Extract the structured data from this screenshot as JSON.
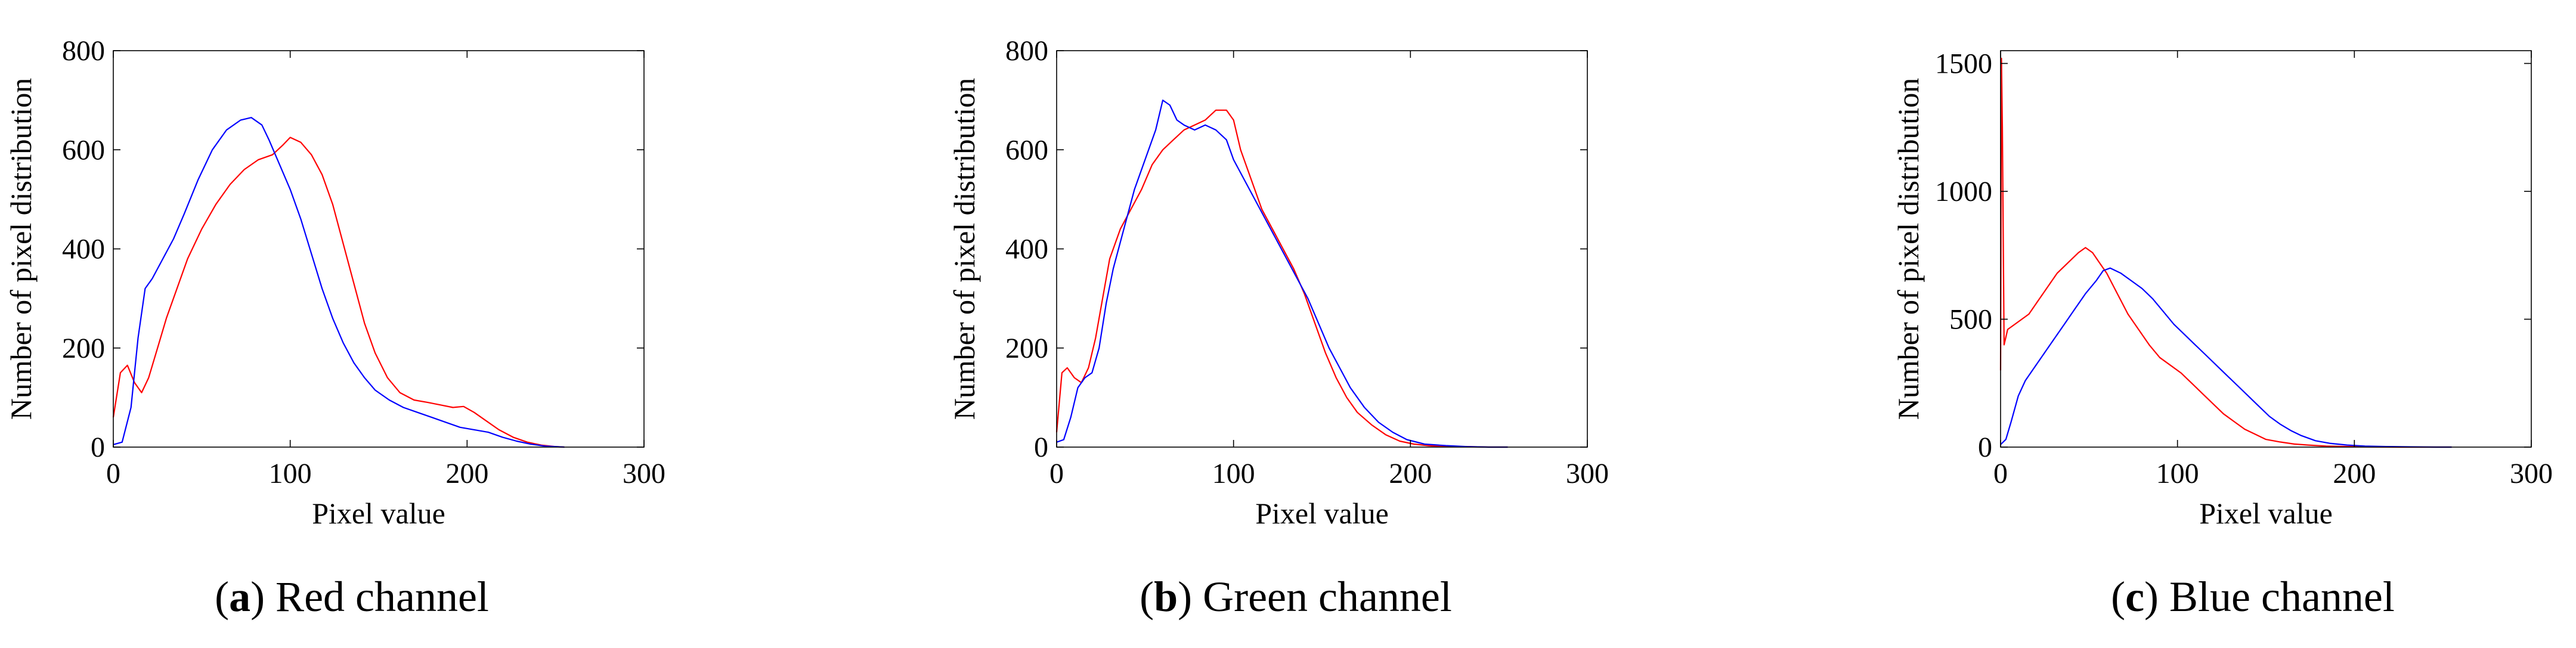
{
  "chart_data": [
    {
      "type": "line",
      "panel_letter": "a",
      "caption": "Red channel",
      "xlabel": "Pixel value",
      "ylabel": "Number of pixel distribution",
      "xlim": [
        0,
        300
      ],
      "ylim": [
        0,
        800
      ],
      "xticks": [
        0,
        100,
        200,
        300
      ],
      "yticks": [
        0,
        200,
        400,
        600,
        800
      ],
      "grid": false,
      "series": [
        {
          "name": "red",
          "color": "#ff0000",
          "x": [
            0,
            4,
            8,
            12,
            16,
            20,
            25,
            30,
            36,
            42,
            50,
            58,
            66,
            74,
            82,
            90,
            96,
            100,
            106,
            112,
            118,
            124,
            130,
            136,
            142,
            148,
            155,
            162,
            170,
            178,
            185,
            192,
            198,
            204,
            210,
            218,
            226,
            234,
            242,
            250,
            255
          ],
          "y": [
            60,
            150,
            165,
            130,
            110,
            140,
            200,
            260,
            320,
            380,
            440,
            490,
            530,
            560,
            580,
            590,
            610,
            625,
            615,
            590,
            550,
            490,
            410,
            330,
            250,
            190,
            140,
            110,
            95,
            90,
            85,
            80,
            82,
            70,
            55,
            35,
            20,
            10,
            4,
            1,
            0
          ]
        },
        {
          "name": "blue",
          "color": "#0000ff",
          "x": [
            0,
            5,
            10,
            14,
            18,
            22,
            28,
            34,
            40,
            48,
            56,
            64,
            72,
            78,
            84,
            88,
            94,
            100,
            106,
            112,
            118,
            124,
            130,
            136,
            142,
            148,
            156,
            164,
            172,
            180,
            188,
            196,
            204,
            212,
            220,
            228,
            236,
            244,
            250,
            255
          ],
          "y": [
            5,
            10,
            80,
            220,
            320,
            340,
            380,
            420,
            470,
            540,
            600,
            640,
            660,
            665,
            650,
            620,
            570,
            520,
            460,
            390,
            320,
            260,
            210,
            170,
            140,
            115,
            95,
            80,
            70,
            60,
            50,
            40,
            35,
            30,
            20,
            12,
            6,
            2,
            1,
            0
          ]
        }
      ]
    },
    {
      "type": "line",
      "panel_letter": "b",
      "caption": "Green channel",
      "xlabel": "Pixel value",
      "ylabel": "Number of pixel distribution",
      "xlim": [
        0,
        300
      ],
      "ylim": [
        0,
        800
      ],
      "xticks": [
        0,
        100,
        200,
        300
      ],
      "yticks": [
        0,
        200,
        400,
        600,
        800
      ],
      "grid": false,
      "series": [
        {
          "name": "red",
          "color": "#ff0000",
          "x": [
            0,
            3,
            6,
            10,
            14,
            18,
            22,
            26,
            30,
            36,
            42,
            48,
            54,
            60,
            66,
            72,
            78,
            84,
            90,
            96,
            100,
            104,
            110,
            116,
            122,
            128,
            134,
            140,
            146,
            152,
            158,
            164,
            170,
            178,
            186,
            194,
            202,
            210,
            220,
            232,
            244,
            255
          ],
          "y": [
            30,
            150,
            160,
            140,
            130,
            160,
            220,
            300,
            380,
            440,
            480,
            520,
            570,
            600,
            620,
            640,
            650,
            660,
            680,
            680,
            660,
            600,
            540,
            480,
            440,
            400,
            360,
            310,
            250,
            190,
            140,
            100,
            70,
            45,
            25,
            12,
            6,
            3,
            1,
            1,
            0,
            0
          ]
        },
        {
          "name": "blue",
          "color": "#0000ff",
          "x": [
            0,
            4,
            8,
            12,
            16,
            20,
            24,
            28,
            32,
            38,
            44,
            50,
            56,
            60,
            64,
            68,
            72,
            78,
            84,
            90,
            96,
            100,
            106,
            112,
            118,
            124,
            130,
            136,
            142,
            148,
            154,
            160,
            166,
            174,
            182,
            190,
            198,
            208,
            220,
            232,
            244,
            255
          ],
          "y": [
            10,
            15,
            60,
            120,
            140,
            150,
            200,
            290,
            360,
            440,
            520,
            580,
            640,
            700,
            690,
            660,
            650,
            640,
            650,
            640,
            620,
            580,
            540,
            500,
            460,
            420,
            380,
            340,
            300,
            250,
            200,
            160,
            120,
            80,
            50,
            30,
            15,
            6,
            3,
            1,
            0,
            0
          ]
        }
      ]
    },
    {
      "type": "line",
      "panel_letter": "c",
      "caption": "Blue channel",
      "xlabel": "Pixel value",
      "ylabel": "Number of pixel distribution",
      "xlim": [
        0,
        300
      ],
      "ylim": [
        0,
        1550
      ],
      "xticks": [
        0,
        100,
        200,
        300
      ],
      "yticks": [
        0,
        500,
        1000,
        1500
      ],
      "grid": false,
      "series": [
        {
          "name": "red",
          "color": "#ff0000",
          "x": [
            0,
            0.5,
            1,
            2,
            4,
            8,
            12,
            16,
            20,
            26,
            32,
            38,
            44,
            48,
            52,
            56,
            60,
            66,
            72,
            78,
            84,
            90,
            96,
            102,
            108,
            114,
            120,
            126,
            132,
            138,
            144,
            150,
            158,
            166,
            174,
            184,
            196,
            210,
            226,
            244,
            255
          ],
          "y": [
            300,
            1520,
            1250,
            400,
            460,
            480,
            500,
            520,
            560,
            620,
            680,
            720,
            760,
            780,
            760,
            720,
            680,
            600,
            520,
            460,
            400,
            350,
            320,
            290,
            250,
            210,
            170,
            130,
            100,
            70,
            50,
            30,
            20,
            12,
            8,
            4,
            2,
            1,
            0,
            0,
            0
          ]
        },
        {
          "name": "blue",
          "color": "#0000ff",
          "x": [
            0,
            3,
            6,
            10,
            14,
            18,
            24,
            30,
            36,
            42,
            48,
            54,
            58,
            62,
            68,
            74,
            80,
            86,
            92,
            98,
            104,
            110,
            116,
            122,
            128,
            134,
            140,
            146,
            152,
            158,
            164,
            170,
            178,
            186,
            196,
            206,
            218,
            232,
            246,
            255
          ],
          "y": [
            10,
            30,
            100,
            200,
            260,
            300,
            360,
            420,
            480,
            540,
            600,
            650,
            690,
            700,
            680,
            650,
            620,
            580,
            530,
            480,
            440,
            400,
            360,
            320,
            280,
            240,
            200,
            160,
            120,
            90,
            65,
            45,
            25,
            15,
            8,
            4,
            2,
            1,
            0,
            0
          ]
        }
      ]
    }
  ]
}
